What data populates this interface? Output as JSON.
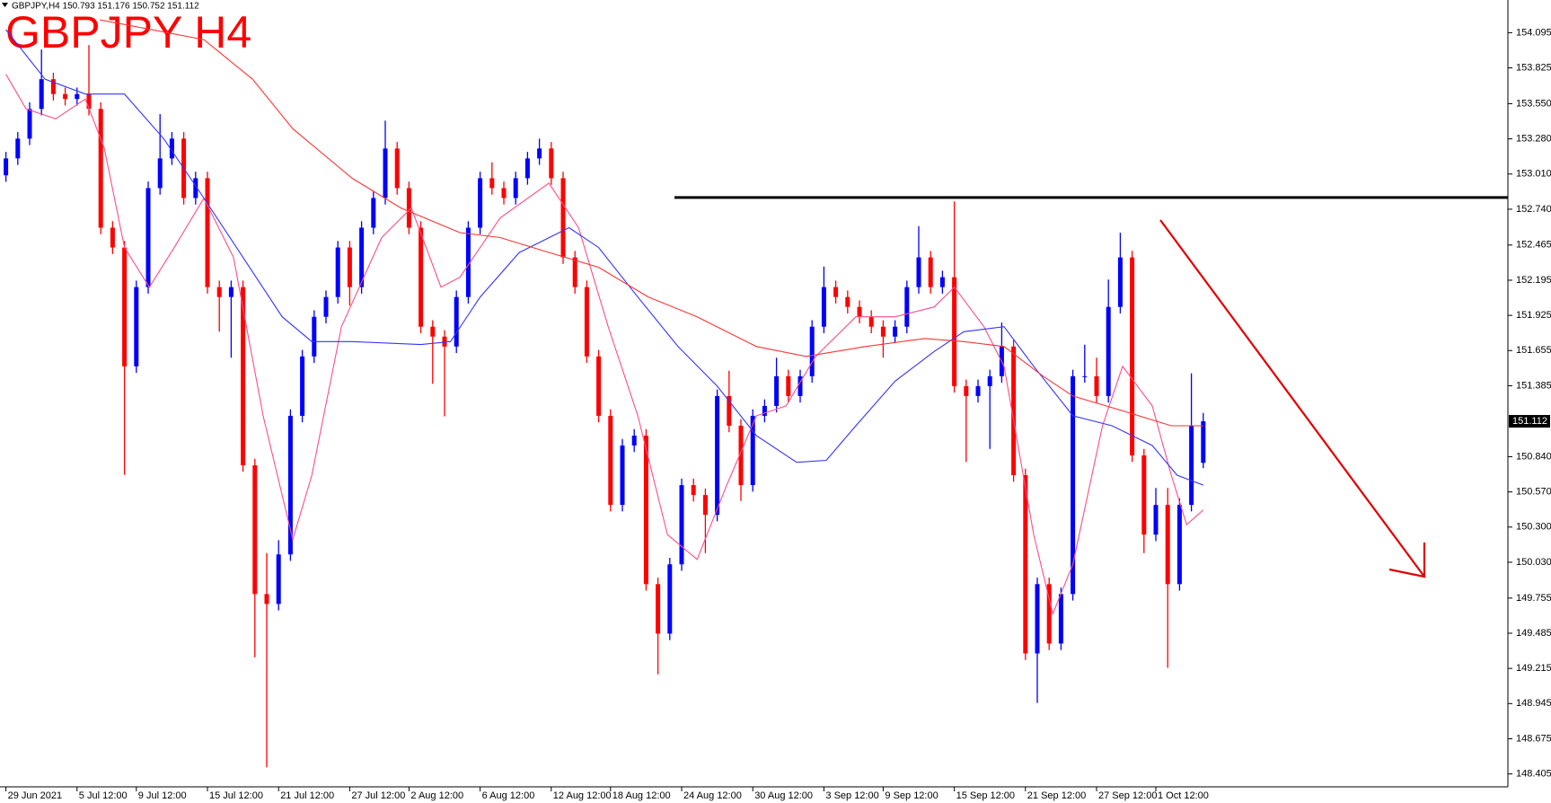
{
  "chart_data": {
    "type": "candlestick",
    "header": "GBPJPY,H4  150.793 151.176 150.752 151.112",
    "title": "GBPJPY H4",
    "title_color": "#ff0000",
    "up_color": "#0000ff",
    "down_color": "#ff0000",
    "categories": [
      "29 Jun 2021",
      null,
      null,
      null,
      null,
      null,
      "5 Jul 12:00",
      null,
      null,
      null,
      null,
      "9 Jul 12:00",
      null,
      null,
      null,
      null,
      null,
      "15 Jul 12:00",
      null,
      null,
      null,
      null,
      null,
      "21 Jul 12:00",
      null,
      null,
      null,
      null,
      null,
      "27 Jul 12:00",
      null,
      null,
      null,
      null,
      "2 Aug 12:00",
      null,
      null,
      null,
      null,
      null,
      "6 Aug 12:00",
      null,
      null,
      null,
      null,
      null,
      "12 Aug 12:00",
      null,
      null,
      null,
      null,
      "18 Aug 12:00",
      null,
      null,
      null,
      null,
      null,
      "24 Aug 12:00",
      null,
      null,
      null,
      null,
      null,
      "30 Aug 12:00",
      null,
      null,
      null,
      null,
      null,
      "3 Sep 12:00",
      null,
      null,
      null,
      null,
      "9 Sep 12:00",
      null,
      null,
      null,
      null,
      null,
      "15 Sep 12:00",
      null,
      null,
      null,
      null,
      null,
      "21 Sep 12:00",
      null,
      null,
      null,
      null,
      null,
      "27 Sep 12:00",
      null,
      null,
      null,
      null,
      "1 Oct 12:00",
      null,
      null,
      null,
      null
    ],
    "ohlc": {
      "open": [
        153.0,
        153.13,
        153.282,
        153.51,
        153.738,
        153.624,
        153.586,
        153.624,
        153.51,
        152.598,
        152.446,
        151.534,
        152.142,
        152.902,
        153.13,
        153.282,
        152.826,
        152.978,
        152.142,
        152.066,
        152.142,
        150.774,
        149.786,
        149.71,
        150.09,
        151.154,
        151.61,
        151.914,
        152.066,
        152.446,
        152.142,
        152.598,
        152.826,
        153.206,
        152.902,
        152.598,
        151.838,
        151.762,
        151.686,
        152.066,
        152.598,
        152.978,
        152.902,
        152.826,
        152.978,
        153.13,
        153.206,
        152.978,
        152.37,
        152.142,
        151.61,
        151.154,
        150.47,
        150.926,
        151.002,
        149.862,
        149.482,
        150.014,
        150.622,
        150.546,
        150.394,
        151.306,
        151.078,
        150.622,
        151.154,
        151.23,
        151.458,
        151.306,
        151.458,
        151.838,
        152.142,
        152.066,
        151.99,
        151.914,
        151.838,
        151.762,
        151.838,
        152.142,
        152.37,
        152.142,
        152.218,
        151.382,
        151.306,
        151.382,
        151.458,
        151.686,
        150.698,
        149.33,
        149.862,
        149.406,
        149.786,
        151.458,
        151.458,
        151.306,
        151.99,
        152.37,
        150.85,
        150.242,
        150.47,
        149.862,
        150.47,
        150.793
      ],
      "high": [
        153.18,
        153.332,
        153.56,
        153.966,
        153.788,
        153.674,
        153.674,
        154.0,
        153.56,
        152.648,
        152.496,
        152.192,
        152.952,
        153.47,
        153.332,
        153.332,
        153.028,
        153.028,
        152.192,
        152.192,
        152.192,
        150.824,
        150.1,
        150.2,
        151.204,
        151.66,
        151.964,
        152.116,
        152.496,
        152.496,
        152.648,
        152.876,
        153.42,
        153.256,
        152.952,
        152.648,
        151.888,
        151.812,
        152.116,
        152.648,
        153.028,
        153.1,
        152.952,
        153.028,
        153.18,
        153.282,
        153.256,
        153.028,
        152.42,
        152.192,
        151.66,
        151.204,
        150.976,
        151.052,
        151.052,
        149.912,
        150.064,
        150.672,
        150.672,
        150.596,
        151.356,
        151.5,
        151.128,
        151.204,
        151.28,
        151.6,
        151.508,
        151.508,
        151.888,
        152.3,
        152.192,
        152.116,
        152.04,
        151.964,
        151.888,
        151.888,
        152.192,
        152.61,
        152.42,
        152.268,
        152.8,
        151.432,
        151.432,
        151.508,
        151.87,
        151.736,
        150.748,
        149.912,
        149.912,
        149.836,
        151.508,
        151.7,
        151.6,
        152.2,
        152.56,
        152.42,
        150.9,
        150.6,
        150.6,
        150.52,
        151.48,
        151.176
      ],
      "low": [
        152.95,
        153.08,
        153.232,
        153.46,
        153.574,
        153.536,
        153.536,
        153.46,
        152.548,
        152.396,
        150.7,
        151.484,
        152.092,
        152.852,
        153.08,
        152.776,
        152.776,
        152.092,
        151.8,
        151.6,
        150.724,
        149.3,
        148.456,
        149.66,
        150.04,
        151.104,
        151.56,
        151.864,
        152.016,
        152.0,
        152.092,
        152.548,
        152.776,
        152.852,
        152.548,
        151.788,
        151.4,
        151.15,
        151.636,
        152.016,
        152.548,
        152.852,
        152.776,
        152.776,
        152.928,
        153.08,
        152.928,
        152.32,
        152.092,
        151.56,
        151.104,
        150.42,
        150.42,
        150.876,
        149.812,
        149.17,
        149.432,
        149.964,
        150.496,
        150.1,
        150.344,
        151.028,
        150.5,
        150.572,
        151.104,
        151.18,
        151.256,
        151.256,
        151.408,
        151.788,
        152.016,
        151.94,
        151.864,
        151.788,
        151.6,
        151.712,
        151.788,
        152.092,
        152.092,
        152.092,
        151.332,
        150.8,
        151.256,
        150.9,
        151.408,
        150.648,
        149.28,
        148.95,
        149.356,
        149.356,
        149.736,
        151.408,
        151.256,
        151.256,
        151.94,
        150.8,
        150.1,
        150.192,
        149.22,
        149.812,
        150.42,
        150.752
      ],
      "close": [
        153.13,
        153.282,
        153.51,
        153.738,
        153.624,
        153.586,
        153.624,
        153.51,
        152.598,
        152.446,
        151.534,
        152.142,
        152.902,
        153.13,
        153.282,
        152.826,
        152.978,
        152.142,
        152.066,
        152.142,
        150.774,
        149.786,
        149.71,
        150.09,
        151.154,
        151.61,
        151.914,
        152.066,
        152.446,
        152.142,
        152.598,
        152.826,
        153.206,
        152.902,
        152.598,
        151.838,
        151.762,
        151.686,
        152.066,
        152.598,
        152.978,
        152.902,
        152.826,
        152.978,
        153.13,
        153.206,
        152.978,
        152.37,
        152.142,
        151.61,
        151.154,
        150.47,
        150.926,
        151.002,
        149.862,
        149.482,
        150.014,
        150.622,
        150.546,
        150.394,
        151.306,
        151.078,
        150.622,
        151.154,
        151.23,
        151.458,
        151.306,
        151.458,
        151.838,
        152.142,
        152.066,
        151.99,
        151.914,
        151.838,
        151.762,
        151.838,
        152.142,
        152.37,
        152.142,
        152.218,
        151.382,
        151.306,
        151.382,
        151.458,
        151.686,
        150.698,
        149.33,
        149.862,
        149.406,
        149.786,
        151.458,
        151.458,
        151.306,
        151.99,
        152.37,
        150.85,
        150.242,
        150.47,
        149.862,
        150.47,
        151.078,
        151.112
      ]
    },
    "series": [
      {
        "color": "#ff4d88",
        "x": [
          0,
          1.7,
          4.2,
          6.7,
          8.3,
          10,
          12.1,
          14.2,
          16.7,
          19.2,
          21.7,
          24.2,
          25.8,
          28.3,
          31.7,
          34.2,
          36.7,
          38.3,
          41.7,
          45.8,
          48.3,
          50.8,
          53.3,
          55.8,
          58.3,
          60.8,
          63.3,
          65.8,
          68.3,
          71.7,
          75,
          78.3,
          80,
          82.5,
          84.2,
          86.7,
          88.3,
          90,
          92.5,
          94.2,
          96.7,
          98.3,
          99.6,
          101
        ],
        "values": [
          153.776,
          153.51,
          153.434,
          153.586,
          153.206,
          152.446,
          152.142,
          152.446,
          152.826,
          152.37,
          151.154,
          150.204,
          150.698,
          151.838,
          152.522,
          152.75,
          152.142,
          152.218,
          152.674,
          152.94,
          152.598,
          151.838,
          151.154,
          150.242,
          150.052,
          150.622,
          151.154,
          151.23,
          151.61,
          151.914,
          151.914,
          151.99,
          152.142,
          151.838,
          151.534,
          150.242,
          149.634,
          150.014,
          151.078,
          151.534,
          151.23,
          150.698,
          150.318,
          150.432
        ]
      },
      {
        "color": "#3333ff",
        "x": [
          0,
          3.3,
          6.7,
          10,
          13.3,
          16.7,
          20,
          23.3,
          25.8,
          29.2,
          35,
          37.5,
          40,
          43.3,
          47.5,
          50,
          53.3,
          56.7,
          60,
          63.3,
          66.7,
          69.2,
          71.7,
          75,
          78.3,
          80.8,
          84.2,
          86.7,
          90,
          93.3,
          96.7,
          98.8,
          101
        ],
        "values": [
          154.118,
          153.738,
          153.624,
          153.624,
          153.282,
          152.826,
          152.37,
          151.914,
          151.724,
          151.724,
          151.701,
          151.724,
          152.066,
          152.408,
          152.598,
          152.446,
          152.066,
          151.686,
          151.382,
          151.002,
          150.797,
          150.812,
          151.078,
          151.42,
          151.648,
          151.8,
          151.838,
          151.534,
          151.154,
          151.078,
          150.926,
          150.698,
          150.622
        ]
      },
      {
        "color": "#ff3333",
        "x": [
          7.9,
          16.7,
          20.8,
          24.2,
          29.2,
          33.3,
          38.3,
          41.7,
          45.8,
          50,
          54.2,
          58.3,
          63.3,
          67.5,
          72.5,
          77.5,
          80.8,
          84.2,
          87.5,
          90,
          94.2,
          98.3,
          101
        ],
        "values": [
          154.194,
          154.042,
          153.738,
          153.358,
          152.978,
          152.75,
          152.56,
          152.522,
          152.408,
          152.294,
          152.066,
          151.914,
          151.686,
          151.61,
          151.686,
          151.747,
          151.724,
          151.686,
          151.458,
          151.306,
          151.192,
          151.078,
          151.078
        ]
      }
    ],
    "hline": 152.83,
    "ylim": [
      148.306,
      154.346
    ],
    "yticks": [
      154.095,
      153.825,
      {
        "value": 153.55,
        "label": "153.550"
      },
      {
        "value": 153.28,
        "label": "153.280"
      },
      {
        "value": 153.01,
        "label": "153.010"
      },
      {
        "value": 152.74,
        "label": "152.740"
      },
      152.465,
      152.195,
      151.925,
      151.655,
      151.385,
      {
        "value": 150.84,
        "label": "150.840"
      },
      {
        "value": 150.57,
        "label": "150.570"
      },
      {
        "value": 150.3,
        "label": "150.300"
      },
      {
        "value": 150.03,
        "label": "150.030"
      },
      149.755,
      149.485,
      149.215,
      148.945,
      148.675,
      148.405
    ]
  }
}
